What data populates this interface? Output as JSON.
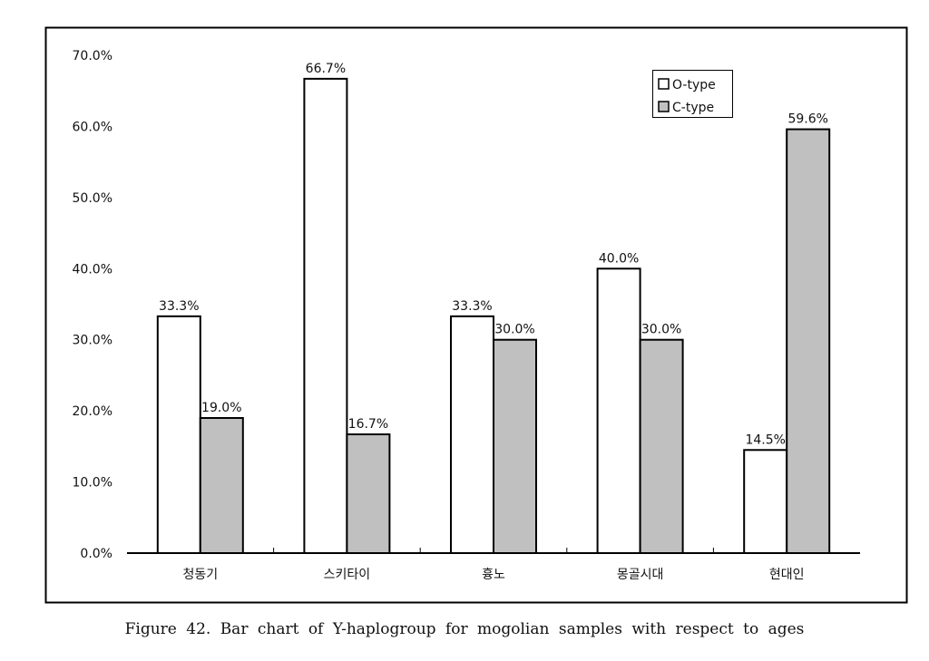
{
  "chart_data": {
    "type": "bar",
    "title": "",
    "xlabel": "",
    "ylabel": "",
    "ylim": [
      0,
      70
    ],
    "yticks": [
      "0.0%",
      "10.0%",
      "20.0%",
      "30.0%",
      "40.0%",
      "50.0%",
      "60.0%",
      "70.0%"
    ],
    "categories": [
      "청동기",
      "스키타이",
      "흉노",
      "몽골시대",
      "현대인"
    ],
    "series": [
      {
        "name": "O-type",
        "color": "#ffffff",
        "values": [
          33.3,
          66.7,
          33.3,
          40.0,
          14.5
        ],
        "labels": [
          "33.3%",
          "66.7%",
          "33.3%",
          "40.0%",
          "14.5%"
        ]
      },
      {
        "name": "C-type",
        "color": "#c0c0c0",
        "values": [
          19.0,
          16.7,
          30.0,
          30.0,
          59.6
        ],
        "labels": [
          "19.0%",
          "16.7%",
          "30.0%",
          "30.0%",
          "59.6%"
        ]
      }
    ],
    "legend": "top-right",
    "grid": false
  },
  "caption": "Figure 42. Bar chart of Y-haplogroup for mogolian samples with respect to ages"
}
